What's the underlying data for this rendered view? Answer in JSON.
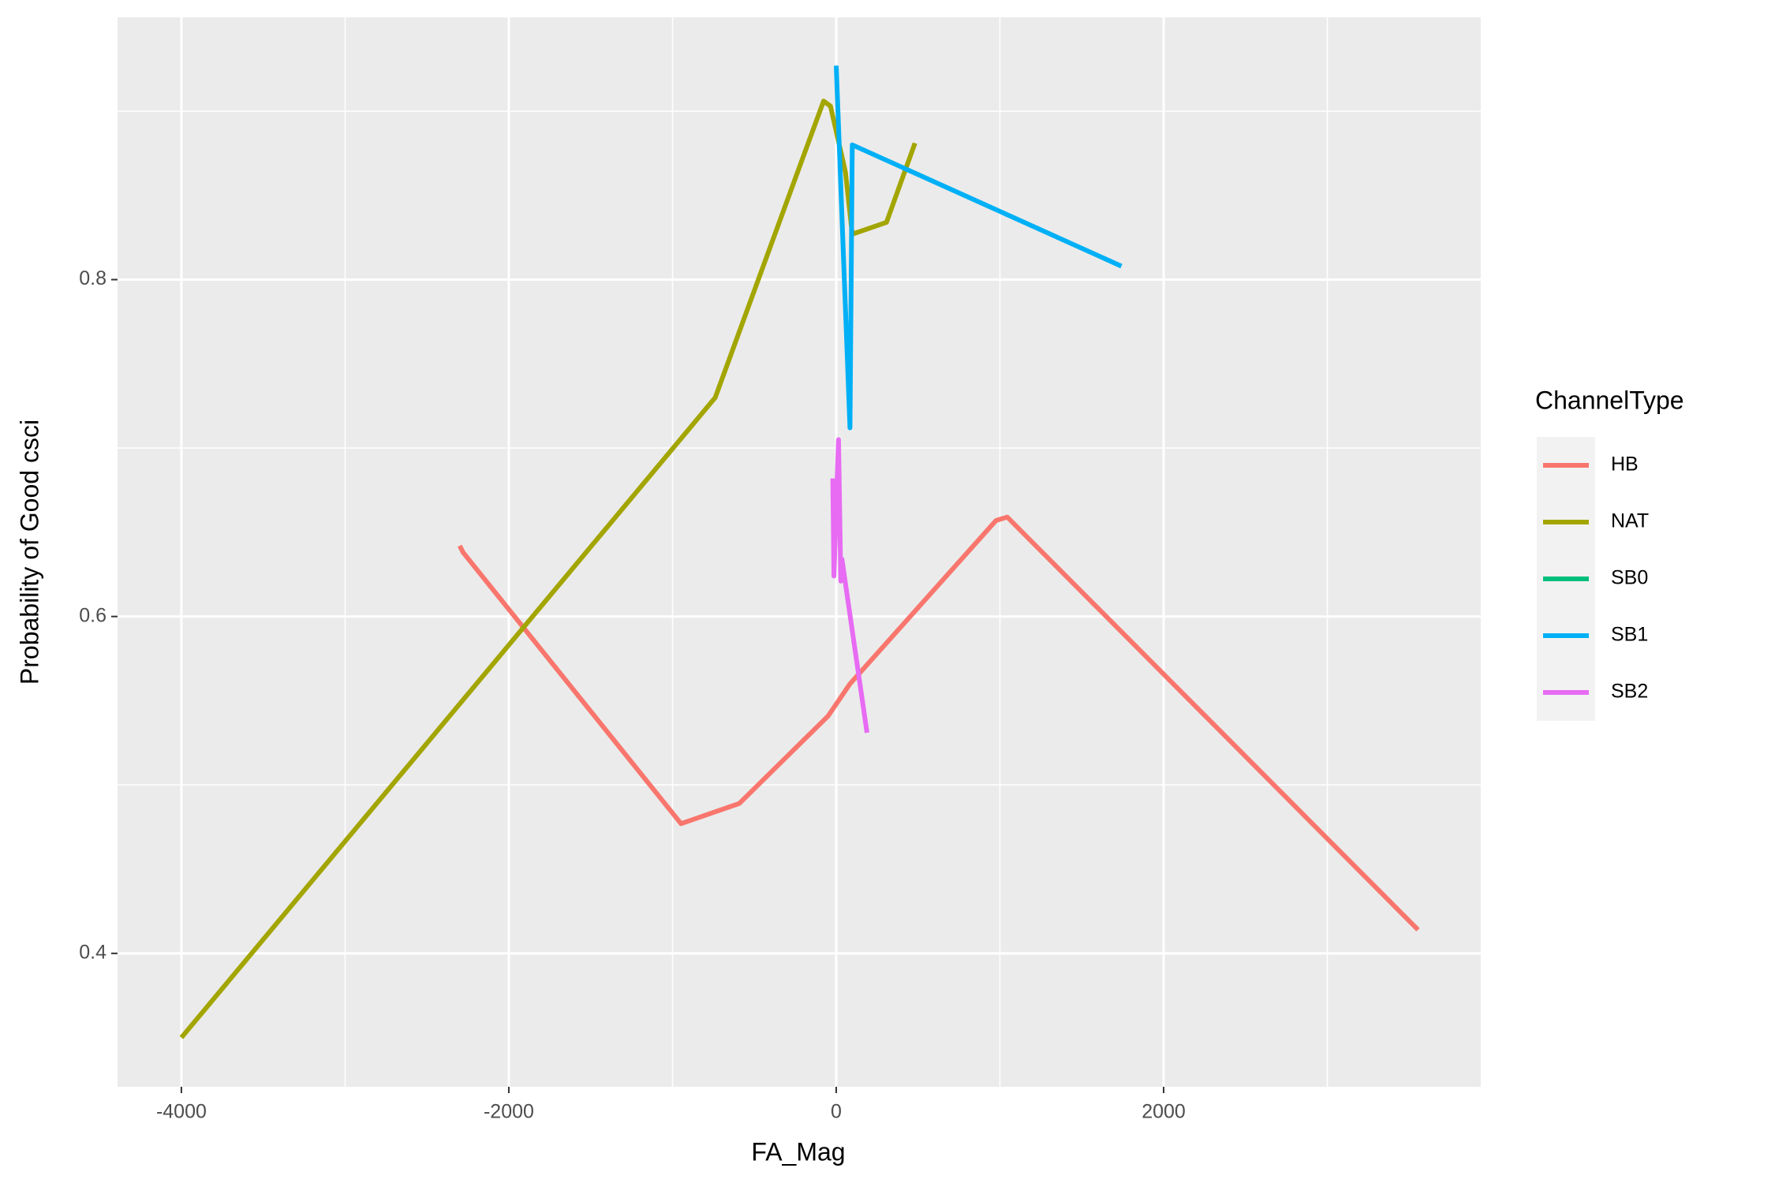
{
  "chart_data": {
    "type": "line",
    "xlabel": "FA_Mag",
    "ylabel": "Probability of Good csci",
    "legend_title": "ChannelType",
    "legend": "right",
    "grid": true,
    "xlim": [
      -4390,
      3937
    ],
    "ylim": [
      0.3208,
      0.9557
    ],
    "xticks": [
      -4000,
      -2000,
      0,
      2000
    ],
    "yticks": [
      0.4,
      0.6,
      0.8
    ],
    "x_minor_grid": [
      -3000,
      -1000,
      1000,
      3000
    ],
    "y_minor_grid": [
      0.5,
      0.7,
      0.9
    ],
    "series": [
      {
        "name": "HB",
        "color": "#F8766D",
        "x": [
          -2300,
          -2279,
          -948,
          -592,
          -49,
          84,
          976,
          1045,
          3554
        ],
        "values": [
          0.642,
          0.638,
          0.477,
          0.489,
          0.541,
          0.56,
          0.657,
          0.659,
          0.414
        ]
      },
      {
        "name": "NAT",
        "color": "#A3A500",
        "x": [
          -4000,
          -739,
          -209,
          -77,
          -35,
          56,
          98,
          307,
          481
        ],
        "values": [
          0.35,
          0.73,
          0.871,
          0.906,
          0.903,
          0.864,
          0.827,
          0.834,
          0.881
        ]
      },
      {
        "name": "SB0",
        "color": "#00BF7D",
        "x": [],
        "values": []
      },
      {
        "name": "SB1",
        "color": "#00B0F6",
        "x": [
          0,
          84,
          98,
          1742
        ],
        "values": [
          0.927,
          0.712,
          0.88,
          0.808
        ]
      },
      {
        "name": "SB2",
        "color": "#E76BF3",
        "x": [
          -21,
          -14,
          14,
          28,
          35,
          188
        ],
        "values": [
          0.682,
          0.624,
          0.705,
          0.621,
          0.634,
          0.531
        ]
      }
    ]
  }
}
